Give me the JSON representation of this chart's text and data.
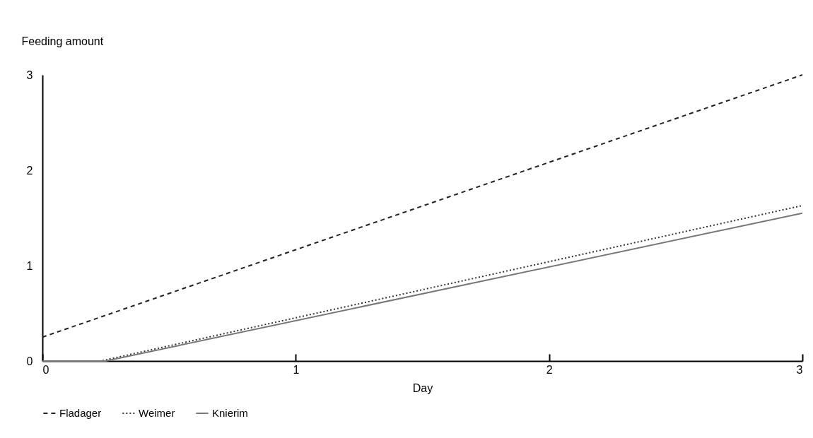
{
  "chart_data": {
    "type": "line",
    "xlabel": "Day",
    "ylabel": "Feeding amount",
    "series": [
      {
        "name": "Fladager",
        "color": "#222222",
        "line_style": "dashed",
        "x": [
          0,
          3
        ],
        "values": [
          0.25,
          3.0
        ]
      },
      {
        "name": "Weimer",
        "color": "#333333",
        "line_style": "dotted",
        "x": [
          0,
          0.23,
          3
        ],
        "values": [
          0,
          0,
          1.63
        ]
      },
      {
        "name": "Knierim",
        "color": "#777777",
        "line_style": "solid",
        "x": [
          0,
          0.25,
          3
        ],
        "values": [
          0,
          0,
          1.55
        ]
      }
    ],
    "xlim": [
      0,
      3
    ],
    "xticks": [
      0,
      1,
      2,
      3
    ],
    "ylim": [
      0,
      3
    ],
    "yticks": [
      0,
      1,
      2,
      3
    ],
    "grid": false,
    "legend": "bottom",
    "marker": "none"
  }
}
